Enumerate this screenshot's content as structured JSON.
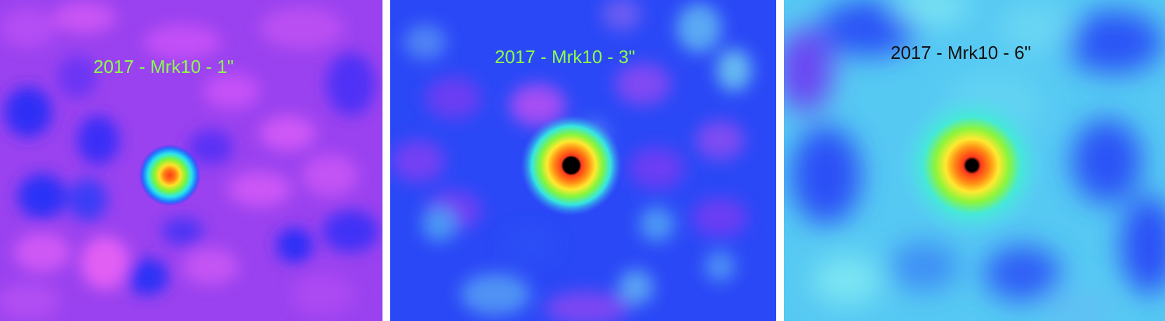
{
  "panels": [
    {
      "label": "2017 - Mrk10 - 1\"",
      "label_color": "#8bff4a",
      "colormap_name": "rainbow-purple",
      "background_color": "#9a42ef"
    },
    {
      "label": "2017 - Mrk10 - 3\"",
      "label_color": "#8bff4a",
      "colormap_name": "rainbow-blue",
      "background_color": "#2a48f6"
    },
    {
      "label": "2017 - Mrk10 - 6\"",
      "label_color": "#111111",
      "colormap_name": "rainbow-cyan",
      "background_color": "#56c9f3"
    }
  ]
}
